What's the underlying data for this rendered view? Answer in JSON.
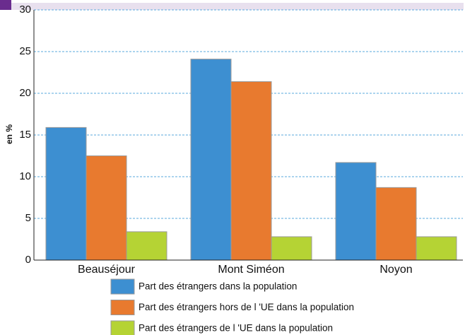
{
  "chart_data": {
    "type": "bar",
    "y_label": "en %",
    "categories": [
      "Beauséjour",
      "Mont Siméon",
      "Noyon"
    ],
    "series": [
      {
        "name": "Part des étrangers dans la population",
        "color": "#3d8fd1",
        "values": [
          15.9,
          24.1,
          11.7
        ]
      },
      {
        "name": "Part des étrangers hors de l 'UE dans la population",
        "color": "#e87a2f",
        "values": [
          12.5,
          21.4,
          8.7
        ]
      },
      {
        "name": "Part des étrangers de l 'UE dans la population",
        "color": "#b5d334",
        "values": [
          3.4,
          2.8,
          2.8
        ]
      }
    ],
    "ylim": [
      0,
      30
    ],
    "yticks": [
      0,
      5,
      10,
      15,
      20,
      25,
      30
    ],
    "grid": true
  }
}
